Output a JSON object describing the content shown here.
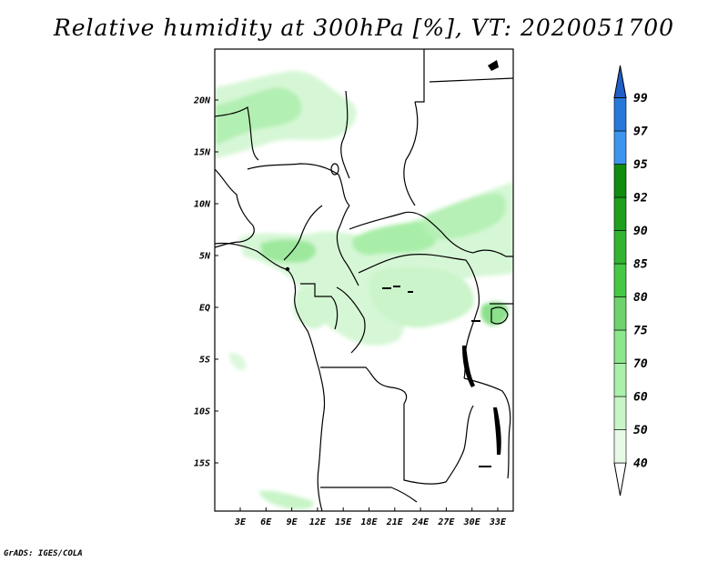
{
  "title": "Relative humidity at 300hPa [%], VT: 2020051700",
  "credit": "GrADS: IGES/COLA",
  "axes": {
    "lat_labels": [
      "20N",
      "15N",
      "10N",
      "5N",
      "EQ",
      "5S",
      "10S",
      "15S"
    ],
    "lon_labels": [
      "3E",
      "6E",
      "9E",
      "12E",
      "15E",
      "18E",
      "21E",
      "24E",
      "27E",
      "30E",
      "33E"
    ]
  },
  "colorbar": {
    "labels": [
      "99",
      "97",
      "95",
      "92",
      "90",
      "85",
      "80",
      "75",
      "70",
      "60",
      "50",
      "40"
    ],
    "colors": [
      "#ffffff",
      "#e6fae6",
      "#c8f5c8",
      "#aaf0aa",
      "#8ce68c",
      "#6ed26e",
      "#46c846",
      "#32b432",
      "#1ea01e",
      "#118c11",
      "#3c96f0",
      "#2878dc",
      "#1e5fc8"
    ]
  },
  "map": {
    "region": "Central Africa",
    "lat_range": [
      -20,
      24
    ],
    "lon_range": [
      0,
      35
    ]
  }
}
